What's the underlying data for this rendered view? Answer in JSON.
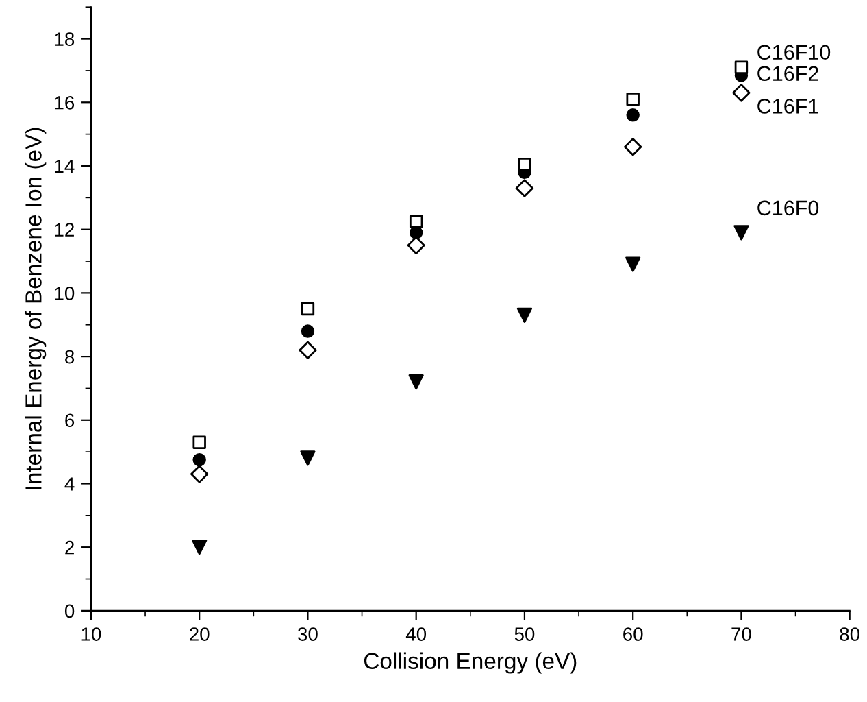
{
  "chart_data": {
    "type": "scatter",
    "xlabel": "Collision Energy (eV)",
    "ylabel": "Internal Energy of Benzene Ion (eV)",
    "x": [
      20,
      30,
      40,
      50,
      60,
      70
    ],
    "xlim": [
      10,
      80
    ],
    "xticks": [
      10,
      20,
      30,
      40,
      50,
      60,
      70,
      80
    ],
    "ylim": [
      0,
      19
    ],
    "yticks": [
      0,
      2,
      4,
      6,
      8,
      10,
      12,
      14,
      16,
      18
    ],
    "grid": false,
    "legend": false,
    "series": [
      {
        "name": "C16F10",
        "color": "#000000",
        "marker": "square",
        "values": [
          5.3,
          9.5,
          12.25,
          14.05,
          16.1,
          17.1
        ]
      },
      {
        "name": "C16F2",
        "color": "#000000",
        "marker": "circle",
        "values": [
          4.75,
          8.8,
          11.9,
          13.8,
          15.6,
          16.85
        ]
      },
      {
        "name": "C16F1",
        "color": "#000000",
        "marker": "diamond",
        "values": [
          4.3,
          8.2,
          11.5,
          13.3,
          14.6,
          16.3
        ]
      },
      {
        "name": "C16F0",
        "color": "#000000",
        "marker": "triangle",
        "values": [
          2.0,
          4.8,
          7.2,
          9.3,
          10.9,
          11.9
        ]
      }
    ]
  }
}
